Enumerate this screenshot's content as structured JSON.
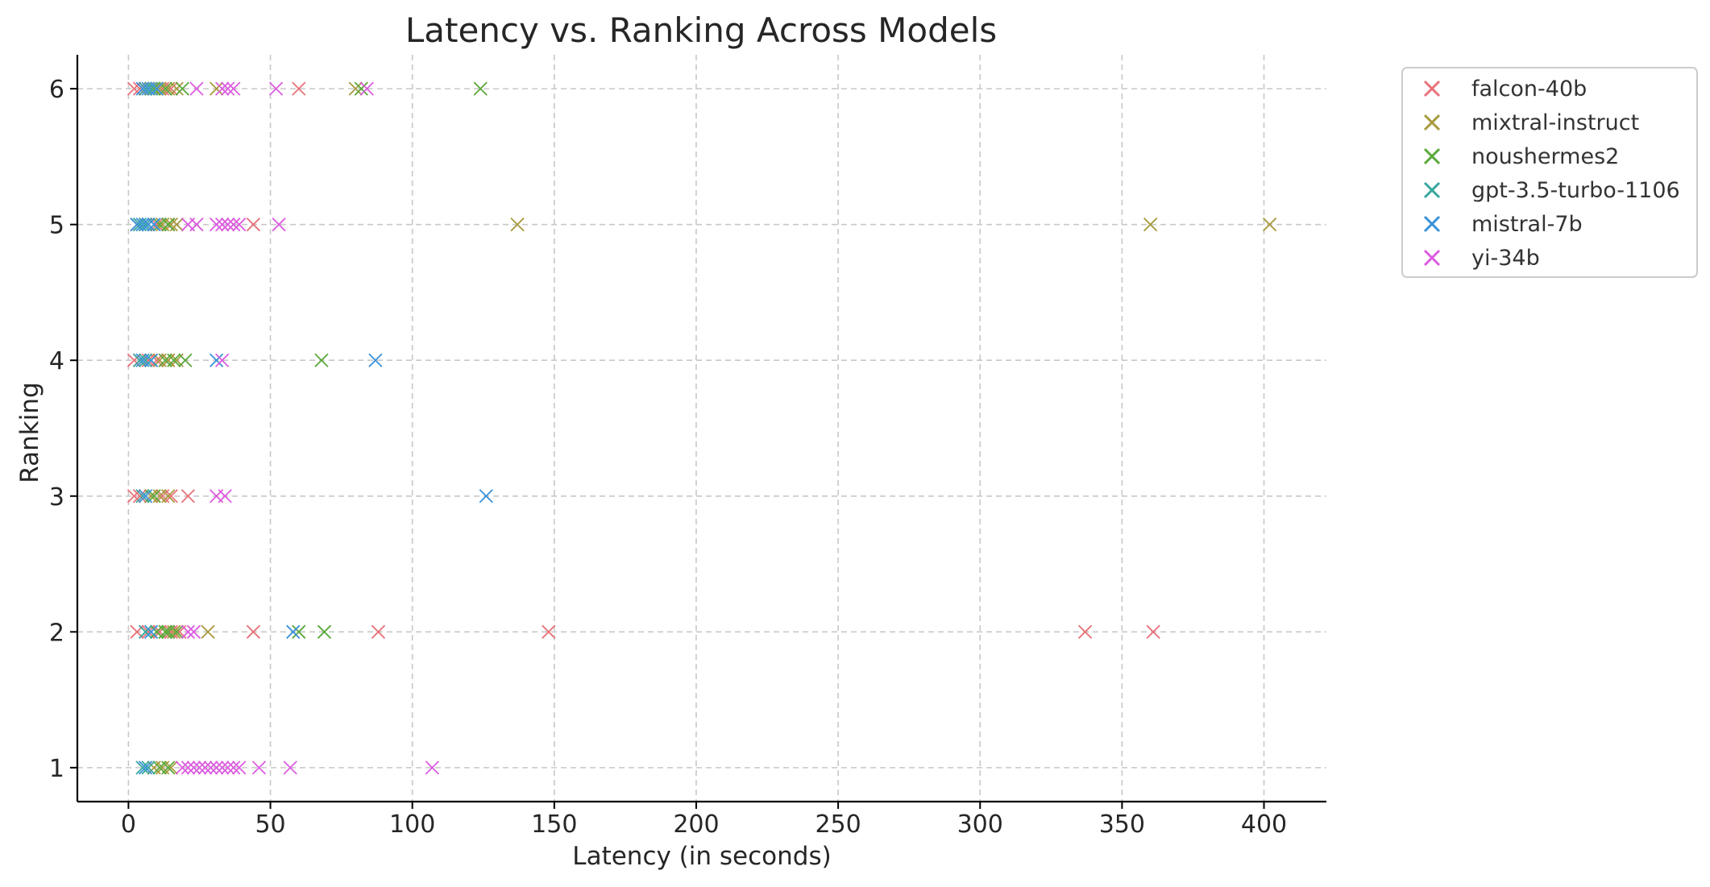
{
  "chart_data": {
    "type": "scatter",
    "title": "Latency vs. Ranking Across Models",
    "xlabel": "Latency (in seconds)",
    "ylabel": "Ranking",
    "xlim": [
      -18,
      422
    ],
    "ylim": [
      0.75,
      6.25
    ],
    "xticks": [
      0,
      50,
      100,
      150,
      200,
      250,
      300,
      350,
      400
    ],
    "yticks": [
      1,
      2,
      3,
      4,
      5,
      6
    ],
    "grid": true,
    "marker": "x",
    "legend_position": "outside-top-right",
    "series": [
      {
        "name": "falcon-40b",
        "color": "#e8727a",
        "points": [
          [
            2,
            6
          ],
          [
            4,
            6
          ],
          [
            6,
            6
          ],
          [
            9,
            6
          ],
          [
            12,
            6
          ],
          [
            15,
            6
          ],
          [
            60,
            6
          ],
          [
            3,
            5
          ],
          [
            6,
            5
          ],
          [
            10,
            5
          ],
          [
            14,
            5
          ],
          [
            44,
            5
          ],
          [
            2,
            4
          ],
          [
            4,
            4
          ],
          [
            7,
            4
          ],
          [
            10,
            4
          ],
          [
            14,
            4
          ],
          [
            2,
            3
          ],
          [
            4,
            3
          ],
          [
            8,
            3
          ],
          [
            12,
            3
          ],
          [
            15,
            3
          ],
          [
            21,
            3
          ],
          [
            3,
            2
          ],
          [
            7,
            2
          ],
          [
            11,
            2
          ],
          [
            15,
            2
          ],
          [
            18,
            2
          ],
          [
            44,
            2
          ],
          [
            88,
            2
          ],
          [
            148,
            2
          ],
          [
            337,
            2
          ],
          [
            361,
            2
          ]
        ]
      },
      {
        "name": "mixtral-instruct",
        "color": "#a89a3f",
        "points": [
          [
            8,
            6
          ],
          [
            11,
            6
          ],
          [
            14,
            6
          ],
          [
            17,
            6
          ],
          [
            31,
            6
          ],
          [
            80,
            6
          ],
          [
            12,
            5
          ],
          [
            15,
            5
          ],
          [
            17,
            5
          ],
          [
            137,
            5
          ],
          [
            360,
            5
          ],
          [
            402,
            5
          ],
          [
            8,
            4
          ],
          [
            11,
            4
          ],
          [
            14,
            4
          ],
          [
            17,
            4
          ],
          [
            8,
            3
          ],
          [
            11,
            3
          ],
          [
            14,
            3
          ],
          [
            10,
            2
          ],
          [
            13,
            2
          ],
          [
            16,
            2
          ],
          [
            28,
            2
          ],
          [
            9,
            1
          ],
          [
            12,
            1
          ],
          [
            15,
            1
          ]
        ]
      },
      {
        "name": "noushermes2",
        "color": "#5aa83a",
        "points": [
          [
            9,
            6
          ],
          [
            13,
            6
          ],
          [
            19,
            6
          ],
          [
            82,
            6
          ],
          [
            124,
            6
          ],
          [
            11,
            5
          ],
          [
            14,
            5
          ],
          [
            13,
            4
          ],
          [
            16,
            4
          ],
          [
            20,
            4
          ],
          [
            68,
            4
          ],
          [
            9,
            3
          ],
          [
            10,
            2
          ],
          [
            13,
            2
          ],
          [
            14,
            2
          ],
          [
            17,
            2
          ],
          [
            60,
            2
          ],
          [
            69,
            2
          ],
          [
            11,
            1
          ],
          [
            14,
            1
          ]
        ]
      },
      {
        "name": "gpt-3.5-turbo-1106",
        "color": "#36a89d",
        "points": [
          [
            6,
            6
          ],
          [
            8,
            6
          ],
          [
            4,
            5
          ],
          [
            6,
            5
          ],
          [
            4,
            4
          ],
          [
            6,
            4
          ],
          [
            5,
            3
          ],
          [
            6,
            2
          ],
          [
            5,
            1
          ],
          [
            7,
            1
          ]
        ]
      },
      {
        "name": "mistral-7b",
        "color": "#3a92d8",
        "points": [
          [
            5,
            6
          ],
          [
            7,
            6
          ],
          [
            10,
            6
          ],
          [
            3,
            5
          ],
          [
            5,
            5
          ],
          [
            7,
            5
          ],
          [
            9,
            5
          ],
          [
            5,
            4
          ],
          [
            8,
            4
          ],
          [
            31,
            4
          ],
          [
            87,
            4
          ],
          [
            6,
            3
          ],
          [
            126,
            3
          ],
          [
            8,
            2
          ],
          [
            58,
            2
          ],
          [
            6,
            1
          ]
        ]
      },
      {
        "name": "yi-34b",
        "color": "#dc5ce0",
        "points": [
          [
            24,
            6
          ],
          [
            33,
            6
          ],
          [
            35,
            6
          ],
          [
            37,
            6
          ],
          [
            52,
            6
          ],
          [
            84,
            6
          ],
          [
            21,
            5
          ],
          [
            24,
            5
          ],
          [
            31,
            5
          ],
          [
            33,
            5
          ],
          [
            35,
            5
          ],
          [
            37,
            5
          ],
          [
            39,
            5
          ],
          [
            53,
            5
          ],
          [
            33,
            4
          ],
          [
            31,
            3
          ],
          [
            34,
            3
          ],
          [
            21,
            2
          ],
          [
            23,
            2
          ],
          [
            19,
            1
          ],
          [
            21,
            1
          ],
          [
            23,
            1
          ],
          [
            25,
            1
          ],
          [
            27,
            1
          ],
          [
            29,
            1
          ],
          [
            31,
            1
          ],
          [
            33,
            1
          ],
          [
            35,
            1
          ],
          [
            37,
            1
          ],
          [
            39,
            1
          ],
          [
            46,
            1
          ],
          [
            57,
            1
          ],
          [
            107,
            1
          ]
        ]
      }
    ]
  }
}
